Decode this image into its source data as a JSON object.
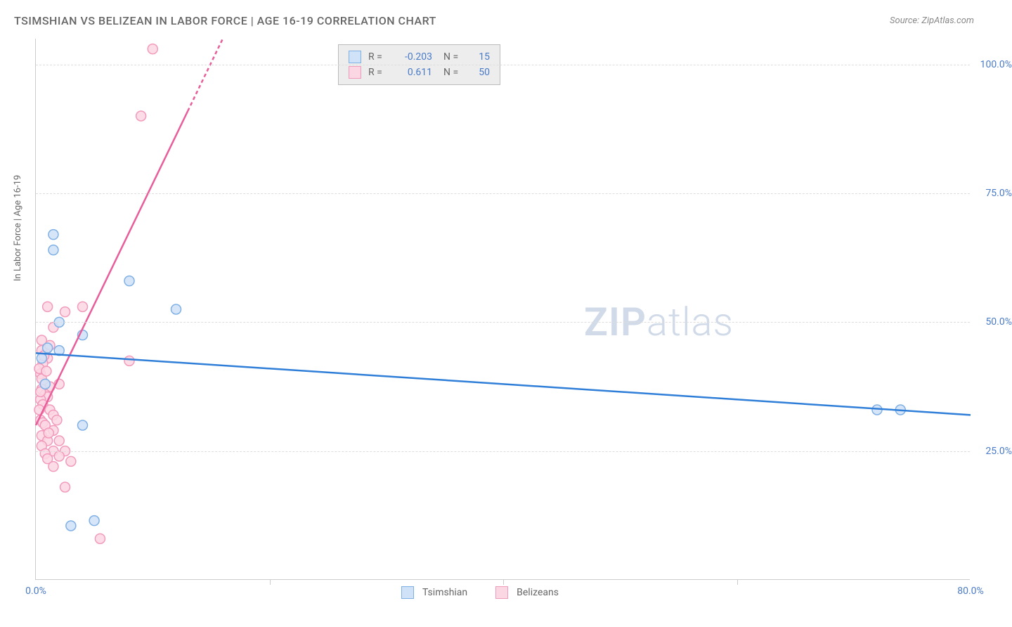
{
  "title": "TSIMSHIAN VS BELIZEAN IN LABOR FORCE | AGE 16-19 CORRELATION CHART",
  "source": "Source: ZipAtlas.com",
  "ylabel": "In Labor Force | Age 16-19",
  "watermark_bold": "ZIP",
  "watermark_light": "atlas",
  "chart": {
    "type": "scatter",
    "xlim": [
      0,
      80
    ],
    "ylim": [
      0,
      105
    ],
    "ytick_values": [
      25,
      50,
      75,
      100
    ],
    "ytick_labels": [
      "25.0%",
      "50.0%",
      "75.0%",
      "100.0%"
    ],
    "xtick_values": [
      0,
      20,
      40,
      60,
      80
    ],
    "xtick_labels": [
      "0.0%",
      "",
      "",
      "",
      "80.0%"
    ],
    "grid_color": "#dddddd",
    "axis_color": "#cccccc",
    "background_color": "#ffffff",
    "marker_radius": 7,
    "marker_stroke_width": 1.5,
    "line_width": 2.5,
    "series": {
      "tsimshian": {
        "label": "Tsimshian",
        "color_fill": "#cfe2f7",
        "color_stroke": "#7fb0e5",
        "line_color": "#2f7ed8",
        "R": "-0.203",
        "N": "15",
        "trend": {
          "x1": 0,
          "y1": 44,
          "x2": 80,
          "y2": 32
        },
        "points": [
          [
            1.5,
            67
          ],
          [
            1.5,
            64
          ],
          [
            2.0,
            50
          ],
          [
            2.0,
            44.5
          ],
          [
            4.0,
            47.5
          ],
          [
            8.0,
            58
          ],
          [
            12.0,
            52.5
          ],
          [
            4.0,
            30
          ],
          [
            3.0,
            10.5
          ],
          [
            5.0,
            11.5
          ],
          [
            1.0,
            45
          ],
          [
            0.5,
            43
          ],
          [
            0.8,
            38
          ],
          [
            72,
            33
          ],
          [
            74,
            33
          ]
        ]
      },
      "belizeans": {
        "label": "Belizeans",
        "color_fill": "#fbd7e3",
        "color_stroke": "#f29abb",
        "line_color": "#e85d9a",
        "R": "0.611",
        "N": "50",
        "trend": {
          "x1": 0,
          "y1": 30,
          "x2": 16,
          "y2": 105
        },
        "trend_dash_from_x": 13,
        "points": [
          [
            10,
            103
          ],
          [
            9,
            90
          ],
          [
            1,
            53
          ],
          [
            4,
            53
          ],
          [
            2.5,
            52
          ],
          [
            1.5,
            49
          ],
          [
            0.5,
            46.5
          ],
          [
            1.0,
            45
          ],
          [
            1.2,
            45.5
          ],
          [
            0.8,
            44
          ],
          [
            1.0,
            43
          ],
          [
            0.6,
            42
          ],
          [
            0.4,
            40
          ],
          [
            0.5,
            39
          ],
          [
            0.8,
            38
          ],
          [
            1.2,
            37.5
          ],
          [
            0.5,
            37
          ],
          [
            0.8,
            36
          ],
          [
            1.0,
            35.5
          ],
          [
            0.4,
            35
          ],
          [
            0.6,
            34
          ],
          [
            1.2,
            33
          ],
          [
            8,
            42.5
          ],
          [
            1.5,
            32
          ],
          [
            0.4,
            31
          ],
          [
            0.6,
            30.5
          ],
          [
            0.8,
            30
          ],
          [
            1.5,
            29
          ],
          [
            0.5,
            28
          ],
          [
            2.0,
            27
          ],
          [
            1.0,
            27
          ],
          [
            0.5,
            26
          ],
          [
            2.5,
            25
          ],
          [
            1.5,
            25
          ],
          [
            0.8,
            24.5
          ],
          [
            2.0,
            24
          ],
          [
            1.0,
            23.5
          ],
          [
            3.0,
            23
          ],
          [
            1.5,
            22
          ],
          [
            2.5,
            18
          ],
          [
            0.5,
            44.5
          ],
          [
            0.7,
            43.5
          ],
          [
            0.3,
            41
          ],
          [
            0.9,
            40.5
          ],
          [
            0.4,
            36.5
          ],
          [
            1.8,
            31
          ],
          [
            0.3,
            33
          ],
          [
            1.1,
            28.5
          ],
          [
            5.5,
            8
          ],
          [
            2.0,
            38
          ]
        ]
      }
    }
  },
  "legend_top": [
    {
      "series": "tsimshian",
      "R": "-0.203",
      "N": "15"
    },
    {
      "series": "belizeans",
      "R": "0.611",
      "N": "50"
    }
  ],
  "legend_bottom": [
    {
      "series": "tsimshian",
      "label": "Tsimshian"
    },
    {
      "series": "belizeans",
      "label": "Belizeans"
    }
  ]
}
